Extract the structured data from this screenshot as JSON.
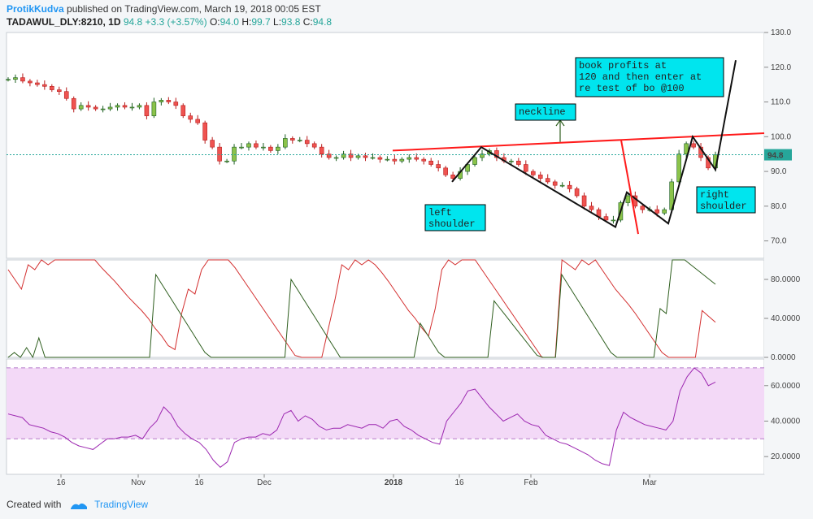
{
  "header": {
    "author": "ProtikKudva",
    "published": "published on TradingView.com, March 19, 2018 00:05 EST",
    "symbol": "TADAWUL_DLY:8210, 1D",
    "last": "94.8",
    "change": "+3.3 (+3.57%)",
    "o_label": "O:",
    "o": "94.0",
    "h_label": "H:",
    "h": "99.7",
    "l_label": "L:",
    "l": "93.8",
    "c_label": "C:",
    "c": "94.8"
  },
  "footer": {
    "created_with": "Created with",
    "brand": "TradingView"
  },
  "colors": {
    "up": "#26a69a",
    "down": "#ef5350",
    "upBody": "#8bc34a",
    "annotation_box": "#00e5ee",
    "neckline": "#ff1a1a",
    "rsi_line": "#9c27b0",
    "rsi_band": "#f3d9f7"
  },
  "annotations": {
    "book_profits": [
      "book profits at",
      "120 and then enter at",
      "re test of bo @100"
    ],
    "neckline": "neckline",
    "left_shoulder": [
      "left",
      "shoulder"
    ],
    "right_shoulder": [
      "right",
      "shoulder"
    ]
  },
  "price_tag": "94.8",
  "chart_data": [
    {
      "type": "candlestick",
      "pane": "price",
      "ylim": [
        65,
        130
      ],
      "y_ticks": [
        "130.0",
        "120.0",
        "110.0",
        "100.0",
        "90.0",
        "80.0",
        "70.0"
      ],
      "x_ticks": [
        "16",
        "Nov",
        "16",
        "Dec",
        "2018",
        "16",
        "Feb",
        "Mar"
      ],
      "close": [
        116.5,
        117,
        116,
        115.5,
        115,
        114.5,
        113.5,
        113,
        111,
        108,
        109,
        108.5,
        108,
        108,
        108.5,
        109,
        108.5,
        108.5,
        109,
        106,
        110,
        110.5,
        110,
        109,
        106,
        105,
        104,
        99,
        97,
        93,
        93,
        97,
        97,
        98,
        97,
        97,
        96,
        97,
        99.5,
        99,
        99,
        98,
        97,
        95,
        94,
        94,
        95,
        94,
        94.5,
        94,
        94,
        93.5,
        93.5,
        93,
        93.5,
        94,
        93.5,
        93,
        92,
        91,
        89,
        88,
        90,
        92,
        94,
        95,
        96,
        94,
        93,
        93,
        92,
        90,
        89,
        88,
        87,
        86,
        86,
        85,
        83,
        80,
        79,
        77,
        76,
        76,
        81,
        83,
        80,
        79,
        79,
        78,
        79,
        87,
        95,
        98,
        97,
        94,
        91,
        94.8
      ]
    },
    {
      "type": "line",
      "pane": "oscillator",
      "ylim": [
        0,
        100
      ],
      "y_ticks": [
        "80.0000",
        "40.0000",
        "0.0000"
      ],
      "series": [
        {
          "name": "",
          "color": "#d32f2f",
          "values": [
            90,
            80,
            70,
            95,
            90,
            100,
            95,
            100,
            100,
            100,
            100,
            100,
            100,
            100,
            92,
            85,
            78,
            70,
            62,
            55,
            48,
            40,
            30,
            22,
            12,
            8,
            45,
            70,
            65,
            90,
            100,
            100,
            100,
            100,
            92,
            82,
            72,
            62,
            52,
            42,
            32,
            22,
            12,
            2,
            0,
            0,
            0,
            0,
            30,
            60,
            95,
            90,
            100,
            95,
            100,
            95,
            87,
            78,
            68,
            58,
            48,
            40,
            30,
            22,
            50,
            90,
            100,
            95,
            100,
            100,
            100,
            90,
            80,
            70,
            60,
            50,
            40,
            30,
            20,
            10,
            0,
            0,
            0,
            100,
            95,
            90,
            100,
            95,
            100,
            90,
            80,
            70,
            62,
            54,
            45,
            35,
            25,
            15,
            5,
            0,
            0,
            0,
            0,
            0,
            48,
            42,
            36
          ]
        },
        {
          "name": "",
          "color": "#2e5e1e",
          "values": [
            0,
            5,
            0,
            10,
            0,
            20,
            0,
            0,
            0,
            0,
            0,
            0,
            0,
            0,
            0,
            0,
            0,
            0,
            0,
            0,
            0,
            0,
            0,
            0,
            85,
            75,
            65,
            55,
            45,
            35,
            25,
            15,
            5,
            0,
            0,
            0,
            0,
            0,
            0,
            0,
            0,
            0,
            0,
            0,
            0,
            0,
            80,
            70,
            60,
            50,
            40,
            30,
            20,
            10,
            0,
            0,
            0,
            0,
            0,
            0,
            0,
            0,
            0,
            0,
            0,
            0,
            0,
            35,
            25,
            15,
            5,
            0,
            0,
            0,
            0,
            0,
            0,
            0,
            0,
            58,
            50,
            42,
            34,
            26,
            18,
            10,
            2,
            0,
            0,
            0,
            85,
            75,
            65,
            55,
            45,
            35,
            25,
            15,
            5,
            0,
            0,
            0,
            0,
            0,
            0,
            0,
            50,
            45,
            100,
            100,
            100,
            95,
            90,
            85,
            80,
            75
          ]
        }
      ]
    },
    {
      "type": "line",
      "pane": "rsi",
      "ylim": [
        10,
        75
      ],
      "y_ticks": [
        "60.0000",
        "40.0000",
        "20.0000"
      ],
      "band": [
        30,
        70
      ],
      "series": [
        {
          "name": "",
          "color": "#9c27b0",
          "values": [
            44,
            43,
            42,
            38,
            37,
            36,
            34,
            33,
            31,
            28,
            26,
            25,
            24,
            27,
            30,
            30,
            31,
            31,
            32,
            30,
            36,
            40,
            48,
            44,
            37,
            33,
            30,
            28,
            24,
            18,
            14,
            17,
            28,
            30,
            31,
            31,
            33,
            32,
            35,
            44,
            46,
            40,
            43,
            41,
            37,
            35,
            36,
            36,
            38,
            37,
            36,
            38,
            38,
            36,
            40,
            41,
            37,
            35,
            32,
            30,
            28,
            27,
            40,
            45,
            50,
            57,
            58,
            53,
            48,
            44,
            40,
            42,
            44,
            40,
            38,
            37,
            32,
            30,
            28,
            27,
            25,
            23,
            21,
            18,
            16,
            15,
            35,
            45,
            42,
            40,
            38,
            37,
            36,
            35,
            40,
            57,
            65,
            70,
            67,
            60,
            62
          ]
        }
      ]
    }
  ]
}
